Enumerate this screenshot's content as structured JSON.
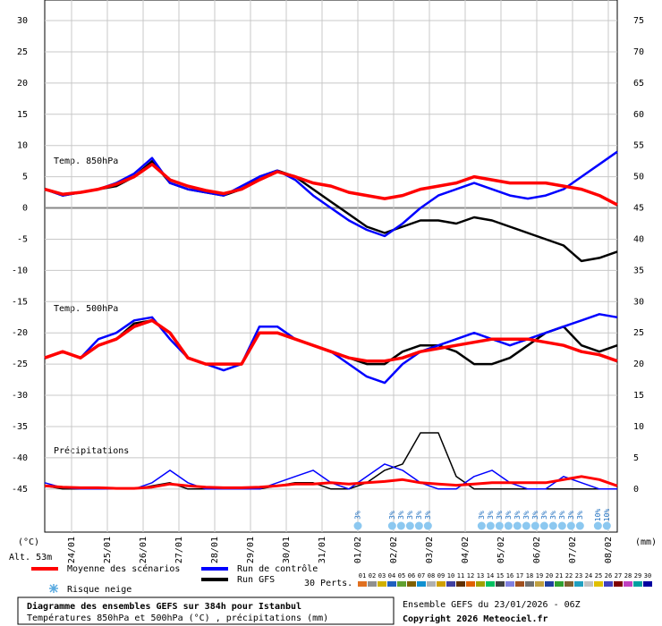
{
  "chart_data": {
    "type": "line",
    "title": "Diagramme des ensembles GEFS sur 384h pour Istanbul",
    "subtitle": "Températures 850hPa et 500hPa (°C) , précipitations (mm)",
    "run_info": "Ensemble GEFS du 23/01/2026 - 06Z",
    "copyright": "Copyright 2026 Meteociel.fr",
    "altitude": "Alt. 53m",
    "y_unit": "(°C)",
    "y2_unit": "(mm)",
    "panel_labels": [
      "Temp. 850hPa",
      "Temp. 500hPa",
      "Précipitations"
    ],
    "x": [
      0,
      12,
      24,
      36,
      48,
      60,
      72,
      84,
      96,
      108,
      120,
      132,
      144,
      156,
      168,
      180,
      192,
      204,
      216,
      228,
      240,
      252,
      264,
      276,
      288,
      300,
      312,
      324,
      336,
      348,
      360,
      372,
      384
    ],
    "xlim": [
      0,
      384
    ],
    "xticks": [
      {
        "value": 18,
        "label": "24/01"
      },
      {
        "value": 42,
        "label": "25/01"
      },
      {
        "value": 66,
        "label": "26/01"
      },
      {
        "value": 90,
        "label": "27/01"
      },
      {
        "value": 114,
        "label": "28/01"
      },
      {
        "value": 138,
        "label": "29/01"
      },
      {
        "value": 162,
        "label": "30/01"
      },
      {
        "value": 186,
        "label": "31/01"
      },
      {
        "value": 210,
        "label": "01/02"
      },
      {
        "value": 234,
        "label": "02/02"
      },
      {
        "value": 258,
        "label": "03/02"
      },
      {
        "value": 282,
        "label": "04/02"
      },
      {
        "value": 306,
        "label": "05/02"
      },
      {
        "value": 330,
        "label": "06/02"
      },
      {
        "value": 354,
        "label": "07/02"
      },
      {
        "value": 378,
        "label": "08/02"
      }
    ],
    "ylim": [
      -51.9,
      33.3
    ],
    "yticks": [
      30,
      25,
      20,
      15,
      10,
      5,
      0,
      -5,
      -10,
      -15,
      -20,
      -25,
      -30,
      -35,
      -40,
      -45
    ],
    "y2lim": [
      -6.9,
      78.3
    ],
    "y2ticks": [
      75,
      70,
      65,
      60,
      55,
      50,
      45,
      40,
      35,
      30,
      25,
      20,
      15,
      10,
      5,
      0
    ],
    "grid": true,
    "series": [
      {
        "name": "Moyenne des scénarios",
        "color": "#ff0000",
        "t850": [
          3,
          2.2,
          2.5,
          3,
          3.8,
          5,
          7,
          4.5,
          3.5,
          2.8,
          2.3,
          3,
          4.5,
          5.8,
          5,
          4,
          3.5,
          2.5,
          2,
          1.5,
          2,
          3,
          3.5,
          4,
          5,
          4.5,
          4,
          4,
          4,
          3.5,
          3,
          2,
          0.5
        ],
        "t500": [
          -24,
          -23,
          -24,
          -22,
          -21,
          -19,
          -18,
          -20,
          -24,
          -25,
          -25,
          -25,
          -20,
          -20,
          -21,
          -22,
          -23,
          -24,
          -24.5,
          -24.5,
          -24,
          -23,
          -22.5,
          -22,
          -21.5,
          -21,
          -21,
          -21,
          -21.5,
          -22,
          -23,
          -23.5,
          -24.5
        ],
        "precip": [
          0.5,
          0.3,
          0.2,
          0.2,
          0.1,
          0.1,
          0.3,
          0.8,
          0.5,
          0.3,
          0.2,
          0.2,
          0.3,
          0.5,
          0.8,
          0.8,
          1,
          0.8,
          1,
          1.2,
          1.5,
          1,
          0.8,
          0.6,
          0.8,
          1,
          1,
          1,
          1,
          1.5,
          2,
          1.5,
          0.5
        ]
      },
      {
        "name": "Run de contrôle",
        "color": "#0000ff",
        "t850": [
          3,
          2,
          2.5,
          3,
          4,
          5.5,
          8,
          4,
          3,
          2.5,
          2,
          3.5,
          5,
          6,
          4.5,
          2,
          0,
          -2,
          -3.5,
          -4.5,
          -2.5,
          0,
          2,
          3,
          4,
          3,
          2,
          1.5,
          2,
          3,
          5,
          7,
          9
        ],
        "t500": [
          -24,
          -23,
          -24,
          -21,
          -20,
          -18,
          -17.5,
          -21,
          -24,
          -25,
          -26,
          -25,
          -19,
          -19,
          -21,
          -22,
          -23,
          -25,
          -27,
          -28,
          -25,
          -23,
          -22,
          -21,
          -20,
          -21,
          -22,
          -21,
          -20,
          -19,
          -18,
          -17,
          -17.5
        ],
        "precip": [
          1,
          0.2,
          0,
          0,
          0,
          0,
          1,
          3,
          1,
          0,
          0,
          0,
          0,
          1,
          2,
          3,
          1,
          0,
          2,
          4,
          3,
          1,
          0,
          0,
          2,
          3,
          1,
          0,
          0,
          2,
          1,
          0,
          0
        ]
      },
      {
        "name": "Run GFS",
        "color": "#000000",
        "t850": [
          3,
          2,
          2.5,
          3,
          3.5,
          5,
          7.5,
          4,
          3,
          2.5,
          2,
          3,
          5,
          6,
          5,
          3,
          1,
          -1,
          -3,
          -4,
          -3,
          -2,
          -2,
          -2.5,
          -1.5,
          -2,
          -3,
          -4,
          -5,
          -6,
          -8.5,
          -8,
          -7
        ],
        "t500": [
          -24,
          -23,
          -24,
          -22,
          -21,
          -18.5,
          -18,
          -20,
          -24,
          -25,
          -25,
          -25,
          -20,
          -20,
          -21,
          -22,
          -23,
          -24,
          -25,
          -25,
          -23,
          -22,
          -22,
          -23,
          -25,
          -25,
          -24,
          -22,
          -20,
          -19,
          -22,
          -23,
          -22
        ],
        "precip": [
          0.5,
          0,
          0,
          0,
          0,
          0,
          0.5,
          1,
          0,
          0,
          0,
          0,
          0,
          0.5,
          1,
          1,
          0,
          0,
          1,
          3,
          4,
          9,
          9,
          2,
          0,
          0,
          0,
          0,
          0,
          0,
          0,
          0,
          0
        ]
      }
    ],
    "snow_label": "Risque neige",
    "snow": [
      {
        "x": 210,
        "label": "3%"
      },
      {
        "x": 233,
        "label": "3%"
      },
      {
        "x": 239,
        "label": "3%"
      },
      {
        "x": 245,
        "label": "3%"
      },
      {
        "x": 251,
        "label": "3%"
      },
      {
        "x": 257,
        "label": "3%"
      },
      {
        "x": 293,
        "label": "3%"
      },
      {
        "x": 299,
        "label": "3%"
      },
      {
        "x": 305,
        "label": "3%"
      },
      {
        "x": 311,
        "label": "3%"
      },
      {
        "x": 317,
        "label": "3%"
      },
      {
        "x": 323,
        "label": "3%"
      },
      {
        "x": 329,
        "label": "3%"
      },
      {
        "x": 335,
        "label": "3%"
      },
      {
        "x": 341,
        "label": "3%"
      },
      {
        "x": 347,
        "label": "3%"
      },
      {
        "x": 353,
        "label": "3%"
      },
      {
        "x": 359,
        "label": "3%"
      },
      {
        "x": 371,
        "label": "10%"
      },
      {
        "x": 377,
        "label": "10%"
      }
    ],
    "perts_label": "30 Perts.",
    "perts": [
      {
        "name": "01",
        "color": "#e07020"
      },
      {
        "name": "02",
        "color": "#909090"
      },
      {
        "name": "03",
        "color": "#d0b000"
      },
      {
        "name": "04",
        "color": "#2060c0"
      },
      {
        "name": "05",
        "color": "#60a030"
      },
      {
        "name": "06",
        "color": "#806000"
      },
      {
        "name": "07",
        "color": "#1090d0"
      },
      {
        "name": "08",
        "color": "#b0b0b0"
      },
      {
        "name": "09",
        "color": "#d0a000"
      },
      {
        "name": "10",
        "color": "#4040a0"
      },
      {
        "name": "11",
        "color": "#603000"
      },
      {
        "name": "12",
        "color": "#e06000"
      },
      {
        "name": "13",
        "color": "#a0a000"
      },
      {
        "name": "14",
        "color": "#00c060"
      },
      {
        "name": "15",
        "color": "#404040"
      },
      {
        "name": "16",
        "color": "#8080e0"
      },
      {
        "name": "17",
        "color": "#a05020"
      },
      {
        "name": "18",
        "color": "#707070"
      },
      {
        "name": "19",
        "color": "#c0a040"
      },
      {
        "name": "20",
        "color": "#2040a0"
      },
      {
        "name": "21",
        "color": "#30a030"
      },
      {
        "name": "22",
        "color": "#806030"
      },
      {
        "name": "23",
        "color": "#20a0c0"
      },
      {
        "name": "24",
        "color": "#c0c0c0"
      },
      {
        "name": "25",
        "color": "#e0c000"
      },
      {
        "name": "26",
        "color": "#4040c0"
      },
      {
        "name": "27",
        "color": "#800000"
      },
      {
        "name": "28",
        "color": "#c040c0"
      },
      {
        "name": "29",
        "color": "#00a0a0"
      },
      {
        "name": "30",
        "color": "#0000a0"
      }
    ]
  }
}
